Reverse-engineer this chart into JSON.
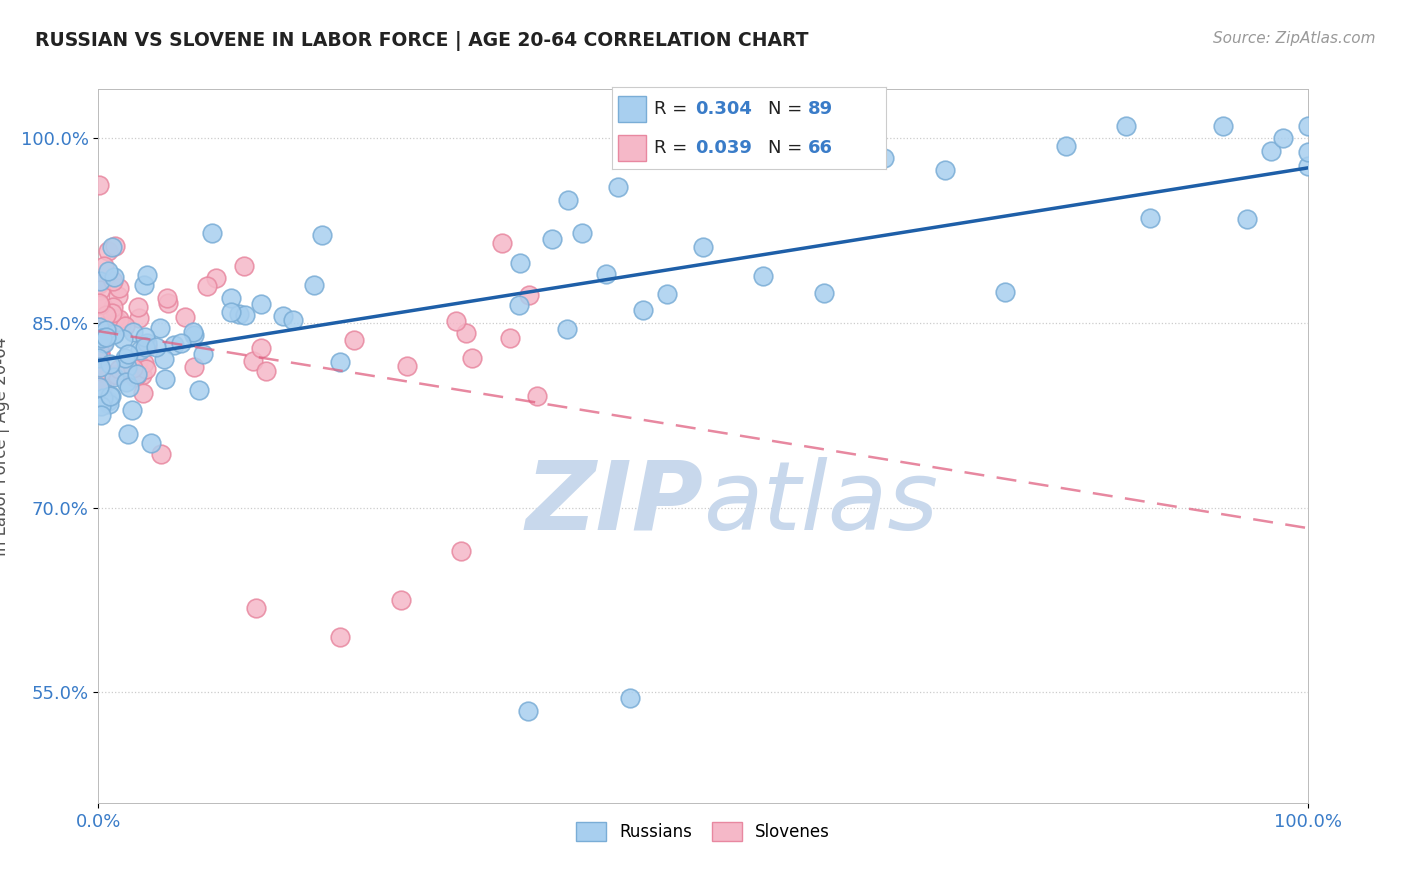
{
  "title": "RUSSIAN VS SLOVENE IN LABOR FORCE | AGE 20-64 CORRELATION CHART",
  "source": "Source: ZipAtlas.com",
  "ylabel": "In Labor Force | Age 20-64",
  "xlim": [
    0.0,
    1.0
  ],
  "ylim": [
    0.46,
    1.04
  ],
  "yticks": [
    0.55,
    0.7,
    0.85,
    1.0
  ],
  "ytick_labels": [
    "55.0%",
    "70.0%",
    "85.0%",
    "100.0%"
  ],
  "russian_R": 0.304,
  "russian_N": 89,
  "slovene_R": 0.039,
  "slovene_N": 66,
  "russian_color": "#A8CFEF",
  "russian_edge": "#7AADD6",
  "slovene_color": "#F5B8C8",
  "slovene_edge": "#E888A0",
  "regression_blue": "#1E5FA8",
  "regression_pink": "#E06080",
  "watermark_color": "#C8D8EC",
  "background_color": "#FFFFFF",
  "grid_color": "#CCCCCC",
  "title_color": "#222222",
  "tick_color": "#3A7CC8",
  "xtick_color": "#3A7CC8",
  "legend_text_color": "#222222",
  "legend_val_color": "#3A7CC8"
}
